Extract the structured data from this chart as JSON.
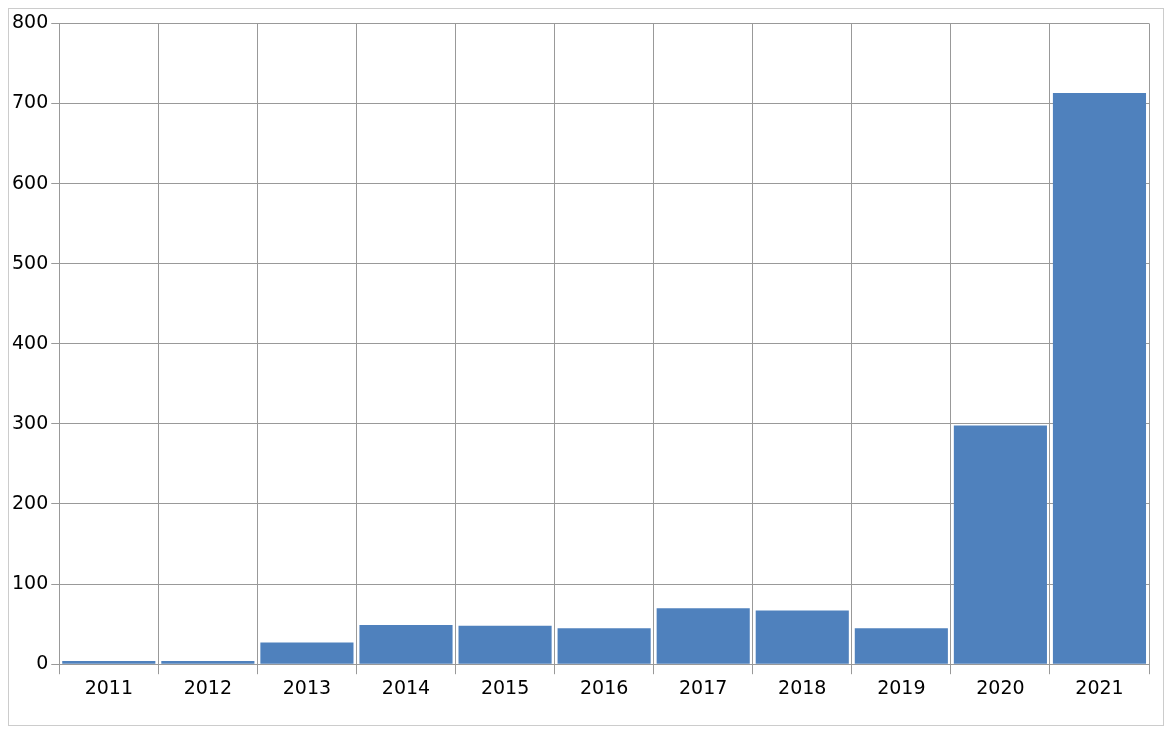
{
  "chart_data": {
    "type": "bar",
    "categories": [
      "2011",
      "2012",
      "2013",
      "2014",
      "2015",
      "2016",
      "2017",
      "2018",
      "2019",
      "2020",
      "2021"
    ],
    "values": [
      4,
      4,
      27,
      49,
      48,
      45,
      70,
      67,
      45,
      298,
      713
    ],
    "color": "#4f81bd",
    "ylim": [
      0,
      800
    ],
    "yticks": [
      0,
      100,
      200,
      300,
      400,
      500,
      600,
      700,
      800
    ],
    "grid": true,
    "legend": false
  }
}
